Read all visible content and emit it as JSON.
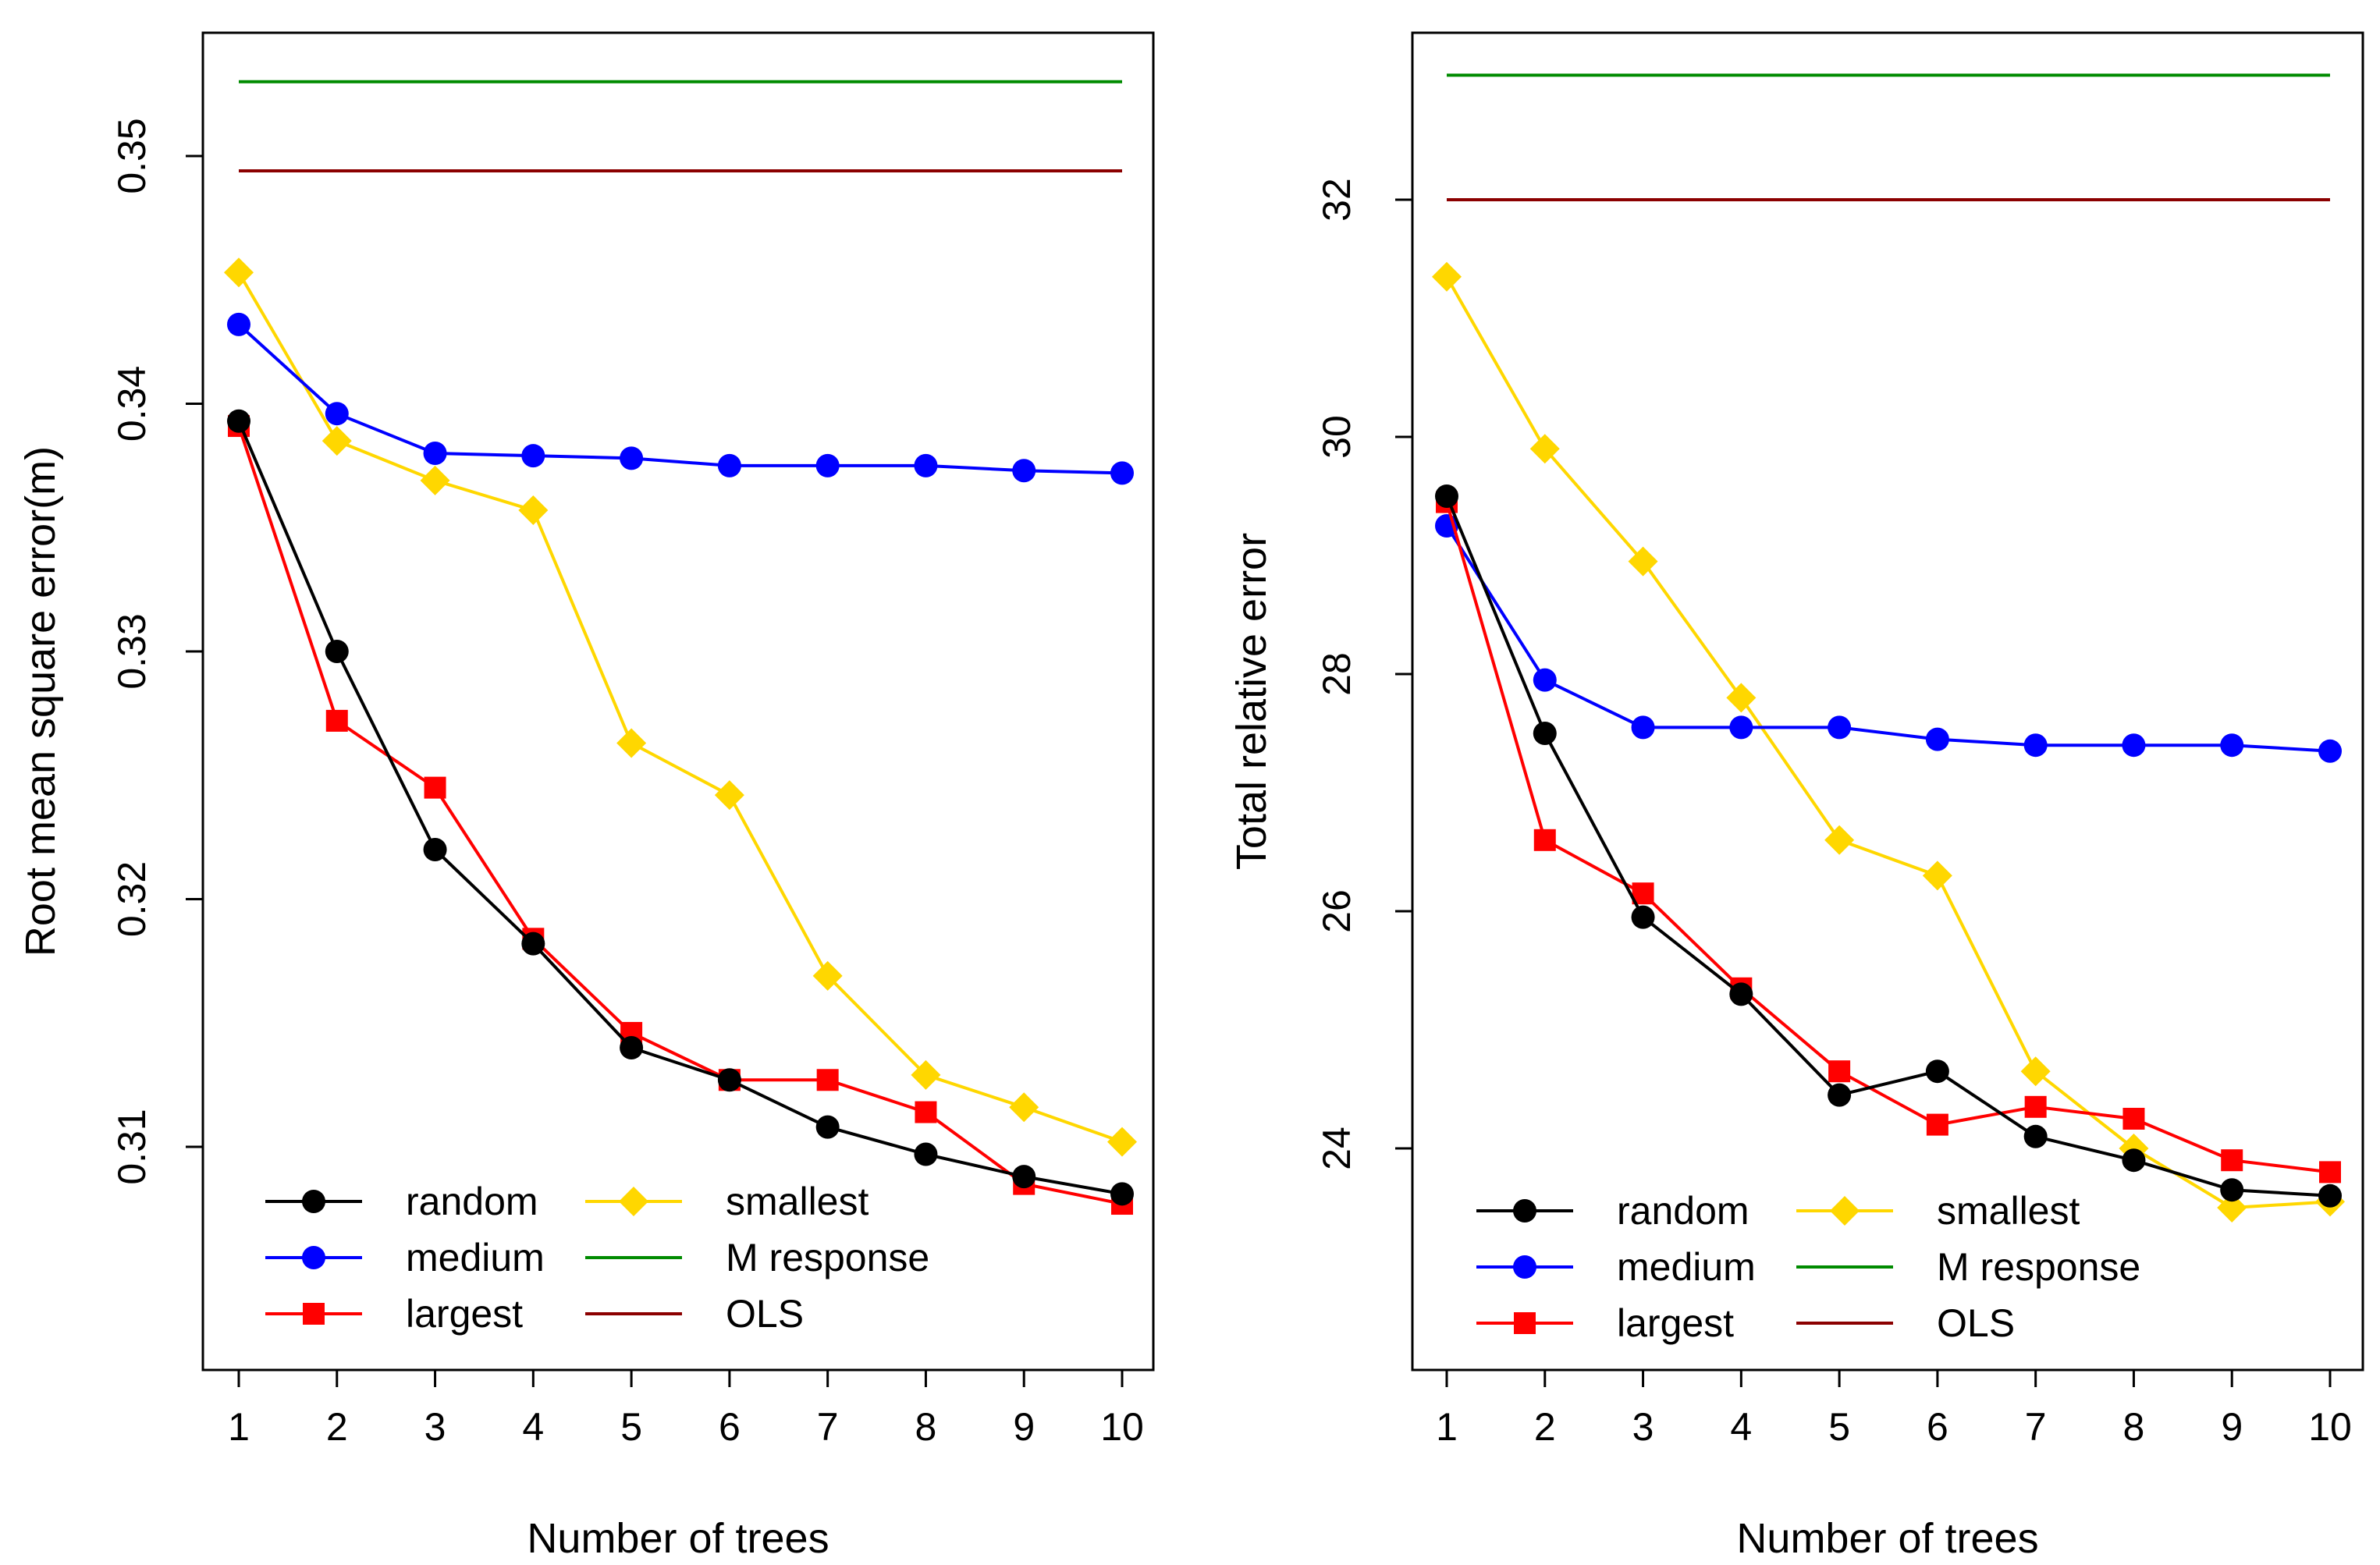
{
  "chart_data": [
    {
      "type": "line",
      "xlabel": "Number of trees",
      "ylabel": "Root mean square error(m)",
      "x": [
        1,
        2,
        3,
        4,
        5,
        6,
        7,
        8,
        9,
        10
      ],
      "xlim": [
        1,
        10
      ],
      "ylim": [
        0.301,
        0.354
      ],
      "yticks": [
        0.31,
        0.32,
        0.33,
        0.34,
        0.35
      ],
      "ytick_labels": [
        "0.31",
        "0.32",
        "0.33",
        "0.34",
        "0.35"
      ],
      "series": [
        {
          "name": "random",
          "color": "#000000",
          "marker": "circle",
          "values": [
            0.3393,
            0.33,
            0.322,
            0.3182,
            0.314,
            0.3127,
            0.3108,
            0.3097,
            0.3088,
            0.3081
          ]
        },
        {
          "name": "medium",
          "color": "#0000ff",
          "marker": "circle",
          "values": [
            0.3432,
            0.3396,
            0.338,
            0.3379,
            0.3378,
            0.3375,
            0.3375,
            0.3375,
            0.3373,
            0.3372
          ]
        },
        {
          "name": "largest",
          "color": "#ff0000",
          "marker": "square",
          "values": [
            0.3391,
            0.3272,
            0.3245,
            0.3184,
            0.3146,
            0.3127,
            0.3127,
            0.3114,
            0.3085,
            0.3077
          ]
        },
        {
          "name": "smallest",
          "color": "#ffd700",
          "marker": "diamond",
          "values": [
            0.3453,
            0.3385,
            0.3369,
            0.3357,
            0.3263,
            0.3242,
            0.3169,
            0.3129,
            0.3116,
            0.3102
          ]
        },
        {
          "name": "M response",
          "color": "#008b00",
          "marker": "none",
          "values": [
            0.353,
            0.353,
            0.353,
            0.353,
            0.353,
            0.353,
            0.353,
            0.353,
            0.353,
            0.353
          ]
        },
        {
          "name": "OLS",
          "color": "#8b0000",
          "marker": "none",
          "values": [
            0.3494,
            0.3494,
            0.3494,
            0.3494,
            0.3494,
            0.3494,
            0.3494,
            0.3494,
            0.3494,
            0.3494
          ]
        }
      ],
      "legend_position": "bottom-left"
    },
    {
      "type": "line",
      "xlabel": "Number of trees",
      "ylabel": "Total relative error",
      "x": [
        1,
        2,
        3,
        4,
        5,
        6,
        7,
        8,
        9,
        10
      ],
      "xlim": [
        1,
        10
      ],
      "ylim": [
        22.1,
        33.5
      ],
      "yticks": [
        24,
        26,
        28,
        30,
        32
      ],
      "ytick_labels": [
        "24",
        "26",
        "28",
        "30",
        "32"
      ],
      "series": [
        {
          "name": "random",
          "color": "#000000",
          "marker": "circle",
          "values": [
            29.5,
            27.5,
            25.95,
            25.3,
            24.45,
            24.65,
            24.1,
            23.9,
            23.65,
            23.6
          ]
        },
        {
          "name": "medium",
          "color": "#0000ff",
          "marker": "circle",
          "values": [
            29.25,
            27.95,
            27.55,
            27.55,
            27.55,
            27.45,
            27.4,
            27.4,
            27.4,
            27.35
          ]
        },
        {
          "name": "largest",
          "color": "#ff0000",
          "marker": "square",
          "values": [
            29.45,
            26.6,
            26.15,
            25.35,
            24.65,
            24.2,
            24.35,
            24.25,
            23.9,
            23.8
          ]
        },
        {
          "name": "smallest",
          "color": "#ffd700",
          "marker": "diamond",
          "values": [
            31.35,
            29.9,
            28.95,
            27.8,
            26.6,
            26.3,
            24.65,
            24.0,
            23.5,
            23.55
          ]
        },
        {
          "name": "M response",
          "color": "#008b00",
          "marker": "none",
          "values": [
            33.05,
            33.05,
            33.05,
            33.05,
            33.05,
            33.05,
            33.05,
            33.05,
            33.05,
            33.05
          ]
        },
        {
          "name": "OLS",
          "color": "#8b0000",
          "marker": "none",
          "values": [
            32.0,
            32.0,
            32.0,
            32.0,
            32.0,
            32.0,
            32.0,
            32.0,
            32.0,
            32.0
          ]
        }
      ],
      "legend_position": "bottom-left"
    }
  ]
}
